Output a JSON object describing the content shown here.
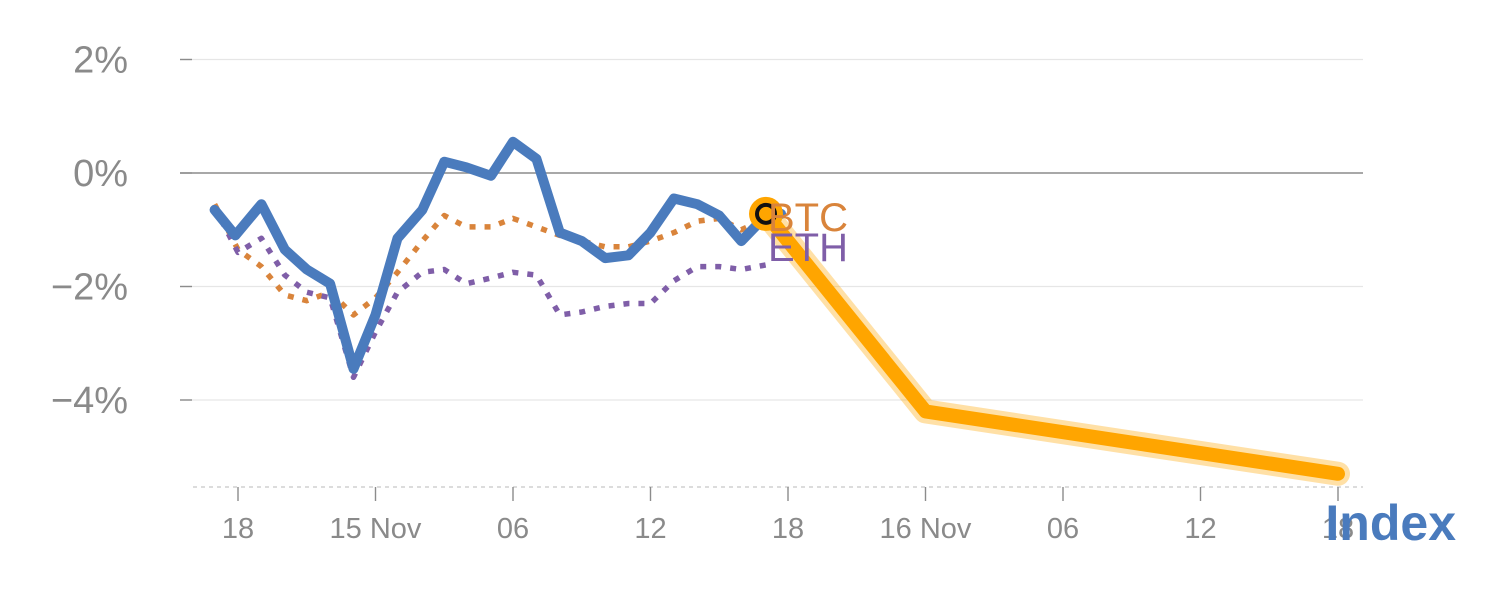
{
  "chart_data": {
    "type": "line",
    "x_ticks": [
      "18",
      "15 Nov",
      "06",
      "12",
      "18",
      "16 Nov",
      "06",
      "12",
      "18"
    ],
    "y_ticks": [
      "2%",
      "0%",
      "−2%",
      "−4%"
    ],
    "y_tick_values": [
      2,
      0,
      -2,
      -4
    ],
    "ylim": [
      -5.6,
      2.3
    ],
    "x_index_range": [
      0,
      8
    ],
    "series": [
      {
        "name": "Index",
        "color": "#4a7bbd",
        "style": "solid",
        "x": [
          -0.17,
          -0.02,
          0.17,
          0.34,
          0.5,
          0.67,
          0.84,
          1.0,
          1.16,
          1.34,
          1.5,
          1.66,
          1.84,
          2.0,
          2.17,
          2.34,
          2.5,
          2.67,
          2.84,
          3.0,
          3.17,
          3.34,
          3.5,
          3.66,
          3.84,
          3.95
        ],
        "y": [
          -0.65,
          -1.1,
          -0.55,
          -1.35,
          -1.7,
          -1.95,
          -3.45,
          -2.5,
          -1.15,
          -0.65,
          0.2,
          0.1,
          -0.05,
          0.55,
          0.25,
          -1.05,
          -1.2,
          -1.5,
          -1.45,
          -1.05,
          -0.45,
          -0.55,
          -0.75,
          -1.2,
          -0.75,
          -0.72
        ]
      },
      {
        "name": "BTC",
        "color": "#d9843b",
        "style": "dotted",
        "x": [
          -0.17,
          0.0,
          0.17,
          0.34,
          0.5,
          0.67,
          0.84,
          1.0,
          1.16,
          1.34,
          1.5,
          1.66,
          1.84,
          2.0,
          2.17,
          2.34,
          2.5,
          2.67,
          2.84,
          3.0,
          3.17,
          3.34,
          3.5,
          3.66,
          3.84
        ],
        "y": [
          -0.55,
          -1.35,
          -1.65,
          -2.15,
          -2.25,
          -2.1,
          -2.5,
          -2.2,
          -1.75,
          -1.2,
          -0.75,
          -0.95,
          -0.95,
          -0.8,
          -0.95,
          -1.1,
          -1.2,
          -1.3,
          -1.3,
          -1.2,
          -1.05,
          -0.85,
          -0.8,
          -1.0,
          -0.8
        ]
      },
      {
        "name": "ETH",
        "color": "#7f5ea8",
        "style": "dotted",
        "x": [
          -0.17,
          0.0,
          0.17,
          0.34,
          0.5,
          0.67,
          0.84,
          1.0,
          1.16,
          1.34,
          1.5,
          1.66,
          1.84,
          2.0,
          2.17,
          2.34,
          2.5,
          2.67,
          2.84,
          3.0,
          3.17,
          3.34,
          3.5,
          3.66,
          3.84
        ],
        "y": [
          -0.6,
          -1.4,
          -1.15,
          -1.8,
          -2.1,
          -2.2,
          -3.6,
          -2.8,
          -2.1,
          -1.75,
          -1.7,
          -1.95,
          -1.85,
          -1.75,
          -1.8,
          -2.5,
          -2.45,
          -2.35,
          -2.3,
          -2.3,
          -1.9,
          -1.65,
          -1.65,
          -1.7,
          -1.62
        ]
      }
    ],
    "highlight": {
      "color": "#ffa500",
      "x": [
        3.84,
        5.0,
        8.0
      ],
      "y": [
        -0.72,
        -4.2,
        -5.3
      ]
    },
    "end_labels": [
      {
        "text": "BTC",
        "series": 1,
        "color": "#d9843b"
      },
      {
        "text": "ETH",
        "series": 2,
        "color": "#7f5ea8"
      }
    ],
    "corner_label": {
      "text": "Index",
      "color": "#4a7bbd"
    },
    "grid": true,
    "legend": "none"
  }
}
